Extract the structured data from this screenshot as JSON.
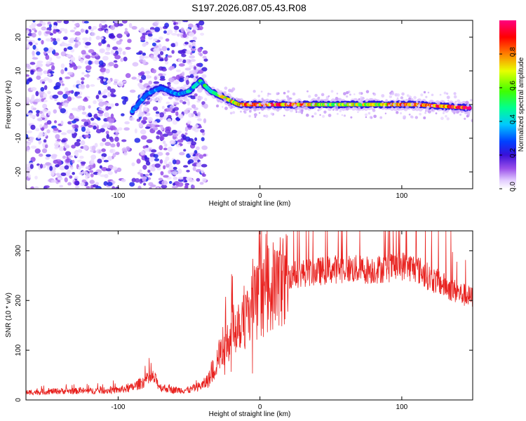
{
  "title": "S197.2026.087.05.43.R08",
  "colors": {
    "snr_line": "#e8211e",
    "background": "#ffffff",
    "colorbar_stops": [
      "#f4f4ff",
      "#c9a8f2",
      "#8a3cdf",
      "#3a10d8",
      "#0033ff",
      "#00c8ff",
      "#00ff80",
      "#7fff00",
      "#ffff00",
      "#ff7f00",
      "#ff0000",
      "#ff0080"
    ]
  },
  "chart_data": [
    {
      "type": "heatmap",
      "name": "spectrogram",
      "xlabel": "Height of straight line (km)",
      "ylabel": "Frequency (Hz)",
      "xlim": [
        -165,
        150
      ],
      "ylim": [
        -25,
        25
      ],
      "xticks": [
        -100,
        0,
        100
      ],
      "xtick_labels": [
        "-100",
        "0",
        "100"
      ],
      "yticks": [
        -20,
        -10,
        0,
        10,
        20
      ],
      "ytick_labels": [
        "-20",
        "-10",
        "0",
        "10",
        "20"
      ],
      "colorbar": {
        "label": "Normalized spectral amplitude",
        "range": [
          0,
          1
        ],
        "ticks": [
          0.0,
          0.2,
          0.4,
          0.6,
          0.8
        ],
        "tick_labels": [
          "0.0",
          "0.2",
          "0.4",
          "0.6",
          "0.8"
        ]
      },
      "ridge": [
        {
          "x": -90,
          "f": -2,
          "amp": 0.25
        },
        {
          "x": -80,
          "f": 3,
          "amp": 0.25
        },
        {
          "x": -70,
          "f": 5,
          "amp": 0.22
        },
        {
          "x": -58,
          "f": 3,
          "amp": 0.3
        },
        {
          "x": -50,
          "f": 4,
          "amp": 0.35
        },
        {
          "x": -42,
          "f": 7,
          "amp": 0.4
        },
        {
          "x": -35,
          "f": 4,
          "amp": 0.45
        },
        {
          "x": -25,
          "f": 2,
          "amp": 0.6
        },
        {
          "x": -15,
          "f": 0,
          "amp": 0.75
        },
        {
          "x": 0,
          "f": 0,
          "amp": 0.8
        },
        {
          "x": 20,
          "f": 0,
          "amp": 0.85
        },
        {
          "x": 50,
          "f": 0,
          "amp": 0.6
        },
        {
          "x": 80,
          "f": 0,
          "amp": 0.65
        },
        {
          "x": 110,
          "f": 0,
          "amp": 0.8
        },
        {
          "x": 148,
          "f": -1,
          "amp": 0.9
        }
      ]
    },
    {
      "type": "line",
      "name": "snr",
      "xlabel": "Height of straight line (km)",
      "ylabel": "SNR (10 * v/v)",
      "xlim": [
        -165,
        150
      ],
      "ylim": [
        0,
        340
      ],
      "xticks": [
        -100,
        0,
        100
      ],
      "xtick_labels": [
        "-100",
        "0",
        "100"
      ],
      "yticks": [
        0,
        100,
        200,
        300
      ],
      "ytick_labels": [
        "0",
        "100",
        "200",
        "300"
      ],
      "x": [
        -165,
        -140,
        -120,
        -100,
        -90,
        -80,
        -75,
        -70,
        -60,
        -50,
        -45,
        -40,
        -35,
        -30,
        -25,
        -20,
        -15,
        -10,
        -5,
        0,
        5,
        10,
        15,
        20,
        30,
        40,
        50,
        60,
        70,
        80,
        90,
        100,
        110,
        120,
        130,
        140,
        150
      ],
      "y": [
        15,
        18,
        18,
        20,
        25,
        40,
        45,
        25,
        20,
        20,
        25,
        30,
        45,
        80,
        110,
        140,
        160,
        170,
        190,
        200,
        215,
        230,
        240,
        250,
        255,
        258,
        262,
        265,
        262,
        262,
        265,
        270,
        265,
        245,
        230,
        215,
        205
      ]
    }
  ]
}
